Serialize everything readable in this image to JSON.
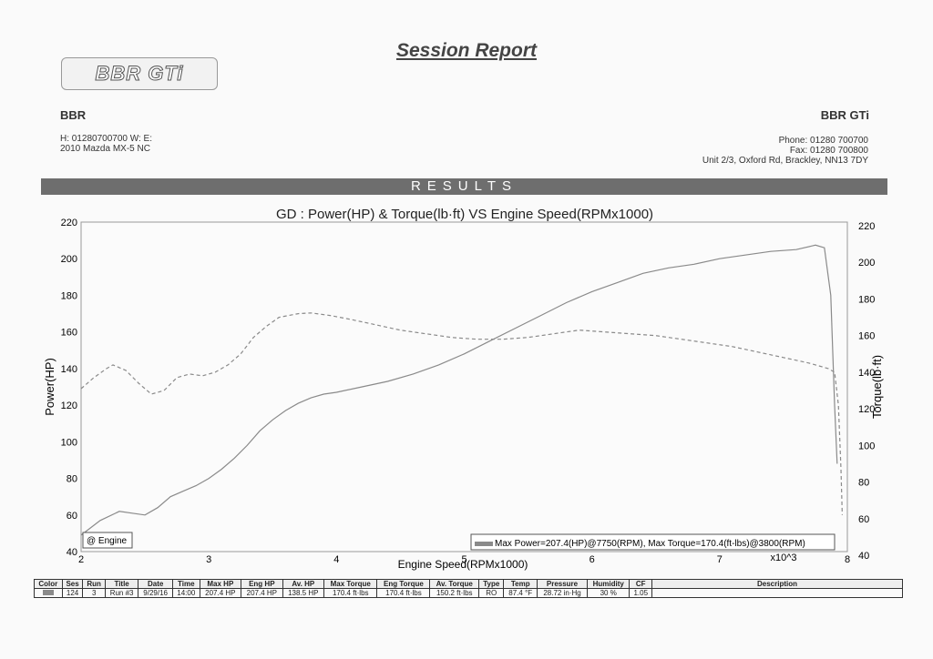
{
  "report": {
    "title": "Session Report",
    "logo_text": "BBR GTi"
  },
  "customer": {
    "name": "BBR",
    "contact": "H: 01280700700    W:         E:",
    "vehicle": "2010 Mazda  MX-5 NC"
  },
  "shop": {
    "name": "BBR GTi",
    "phone": "Phone: 01280 700700",
    "fax": "Fax:    01280 700800",
    "address": "Unit 2/3, Oxford Rd, Brackley, NN13 7DY"
  },
  "results_label": "RESULTS",
  "colors": {
    "curve": "#8a8a8a",
    "bar": "#6e6e6e",
    "grid": "#bbbbbb"
  },
  "chart_data": {
    "type": "line",
    "title": "GD        : Power(HP) & Torque(lb·ft) VS Engine Speed(RPMx1000)",
    "xlabel": "Engine Speed(RPMx1000)",
    "ylabel_left": "Power(HP)",
    "ylabel_right": "Torque(lb·ft)",
    "x_multiplier": "x10^3",
    "xlim": [
      2,
      8
    ],
    "ylim": [
      40,
      220
    ],
    "xticks": [
      2,
      3,
      4,
      5,
      6,
      7,
      8
    ],
    "yticks": [
      40,
      60,
      80,
      100,
      120,
      140,
      160,
      180,
      200,
      220
    ],
    "grid": false,
    "legend": {
      "series": "@ Engine",
      "placement": "bottom-left"
    },
    "summary": "Max Power=207.4(HP)@7750(RPM), Max Torque=170.4(ft-lbs)@3800(RPM)",
    "series": [
      {
        "name": "Power(HP)",
        "style": "solid",
        "points": [
          [
            2.0,
            49
          ],
          [
            2.15,
            57
          ],
          [
            2.3,
            62
          ],
          [
            2.4,
            61
          ],
          [
            2.5,
            60
          ],
          [
            2.6,
            64
          ],
          [
            2.7,
            70
          ],
          [
            2.8,
            73
          ],
          [
            2.9,
            76
          ],
          [
            3.0,
            80
          ],
          [
            3.1,
            85
          ],
          [
            3.2,
            91
          ],
          [
            3.3,
            98
          ],
          [
            3.4,
            106
          ],
          [
            3.5,
            112
          ],
          [
            3.6,
            117
          ],
          [
            3.7,
            121
          ],
          [
            3.8,
            124
          ],
          [
            3.9,
            126
          ],
          [
            4.0,
            127
          ],
          [
            4.2,
            130
          ],
          [
            4.4,
            133
          ],
          [
            4.6,
            137
          ],
          [
            4.8,
            142
          ],
          [
            5.0,
            148
          ],
          [
            5.2,
            155
          ],
          [
            5.4,
            162
          ],
          [
            5.6,
            169
          ],
          [
            5.8,
            176
          ],
          [
            6.0,
            182
          ],
          [
            6.2,
            187
          ],
          [
            6.4,
            192
          ],
          [
            6.6,
            195
          ],
          [
            6.8,
            197
          ],
          [
            7.0,
            200
          ],
          [
            7.2,
            202
          ],
          [
            7.4,
            204
          ],
          [
            7.6,
            205
          ],
          [
            7.75,
            207.4
          ],
          [
            7.82,
            206
          ],
          [
            7.87,
            180
          ],
          [
            7.9,
            120
          ],
          [
            7.92,
            88
          ]
        ]
      },
      {
        "name": "Torque(lb·ft)",
        "style": "dashed",
        "points": [
          [
            2.0,
            129
          ],
          [
            2.1,
            135
          ],
          [
            2.2,
            140
          ],
          [
            2.25,
            142
          ],
          [
            2.35,
            139
          ],
          [
            2.45,
            132
          ],
          [
            2.55,
            126
          ],
          [
            2.65,
            128
          ],
          [
            2.75,
            135
          ],
          [
            2.85,
            137
          ],
          [
            2.95,
            136
          ],
          [
            3.05,
            138
          ],
          [
            3.15,
            142
          ],
          [
            3.25,
            148
          ],
          [
            3.35,
            157
          ],
          [
            3.45,
            163
          ],
          [
            3.55,
            168
          ],
          [
            3.7,
            170
          ],
          [
            3.8,
            170.4
          ],
          [
            3.95,
            169
          ],
          [
            4.1,
            167
          ],
          [
            4.3,
            164
          ],
          [
            4.5,
            161
          ],
          [
            4.7,
            159
          ],
          [
            4.9,
            157
          ],
          [
            5.1,
            156
          ],
          [
            5.3,
            156
          ],
          [
            5.5,
            157
          ],
          [
            5.7,
            159
          ],
          [
            5.9,
            161
          ],
          [
            6.1,
            160
          ],
          [
            6.3,
            159
          ],
          [
            6.5,
            158
          ],
          [
            6.7,
            156
          ],
          [
            6.9,
            154
          ],
          [
            7.1,
            152
          ],
          [
            7.3,
            149
          ],
          [
            7.5,
            146
          ],
          [
            7.7,
            143
          ],
          [
            7.85,
            140
          ],
          [
            7.9,
            138
          ],
          [
            7.93,
            120
          ],
          [
            7.95,
            85
          ],
          [
            7.96,
            60
          ]
        ]
      }
    ]
  },
  "table": {
    "headers": [
      "Color",
      "Ses",
      "Run",
      "Title",
      "Date",
      "Time",
      "Max HP",
      "Eng HP",
      "Av. HP",
      "Max Torque",
      "Eng Torque",
      "Av. Torque",
      "Type",
      "Temp",
      "Pressure",
      "Humidity",
      "CF",
      "Description"
    ],
    "row": [
      "",
      "124",
      "3",
      "Run #3",
      "9/29/16",
      "14:00",
      "207.4 HP",
      "207.4 HP",
      "138.5 HP",
      "170.4 ft·lbs",
      "170.4 ft·lbs",
      "150.2 ft·lbs",
      "RO",
      "87.4 °F",
      "28.72 in·Hg",
      "30 %",
      "1.05",
      ""
    ]
  }
}
